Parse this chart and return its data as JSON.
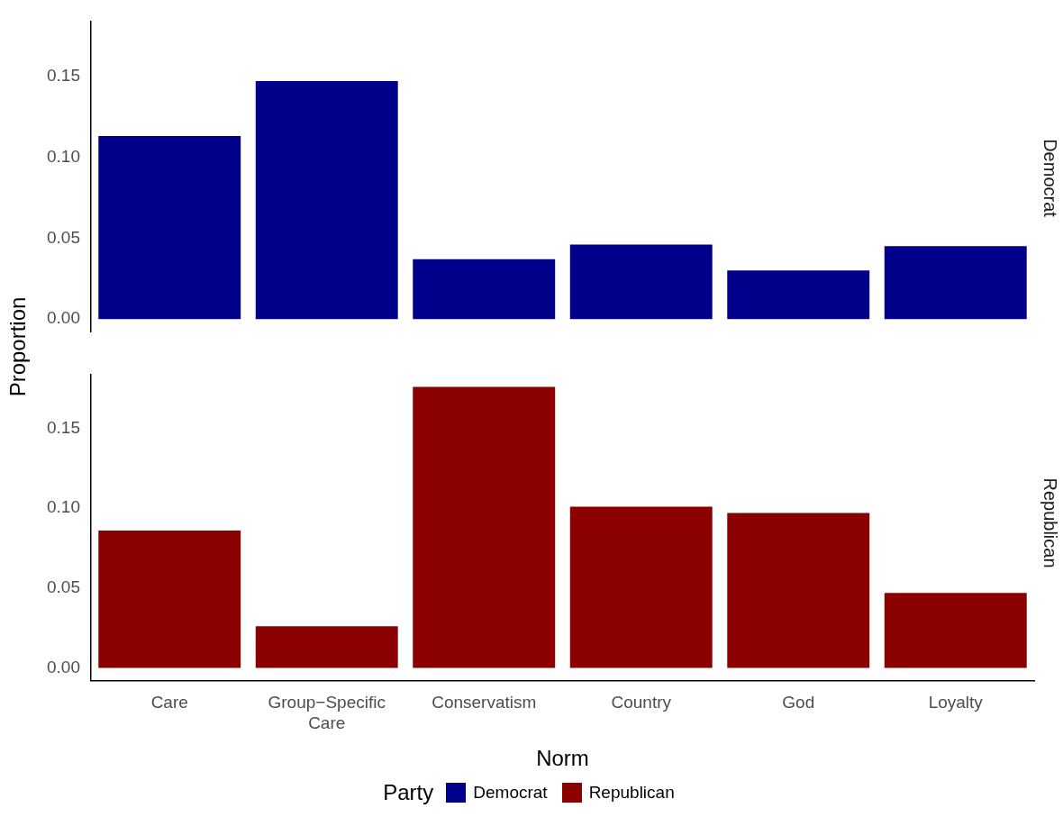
{
  "chart_data": [
    {
      "type": "bar",
      "title": "Democrat",
      "ylabel": "Proportion",
      "categories": [
        null,
        null,
        null,
        null,
        null,
        null
      ],
      "series": [
        {
          "name": "Democrat",
          "color": "#00008b",
          "values": [
            0.113,
            0.147,
            0.037,
            0.046,
            0.03,
            0.045
          ]
        }
      ],
      "ylim": [
        -0.008,
        0.184
      ],
      "yticks": [
        {
          "value": 0,
          "label": "0.00"
        },
        {
          "value": 0.05,
          "label": "0.05"
        },
        {
          "value": 0.1,
          "label": "0.10"
        },
        {
          "value": 0.15,
          "label": "0.15"
        }
      ],
      "tick_labels": "y",
      "legend": "bottom"
    },
    {
      "type": "bar",
      "title": "Republican",
      "xlabel": "Norm",
      "legend_title": "Party",
      "categories": [
        "Care",
        "Group−Specific Care",
        "Conservatism",
        "Country",
        "God",
        "Loyalty"
      ],
      "series": [
        {
          "name": "Republican",
          "color": "#8b0000",
          "values": [
            0.086,
            0.026,
            0.176,
            0.101,
            0.097,
            0.047
          ]
        }
      ],
      "ylim": [
        -0.008,
        0.184
      ],
      "yticks": [
        {
          "value": 0,
          "label": "0.00"
        },
        {
          "value": 0.05,
          "label": "0.05"
        },
        {
          "value": 0.1,
          "label": "0.10"
        },
        {
          "value": 0.15,
          "label": "0.15"
        }
      ],
      "legend": "bottom"
    }
  ]
}
